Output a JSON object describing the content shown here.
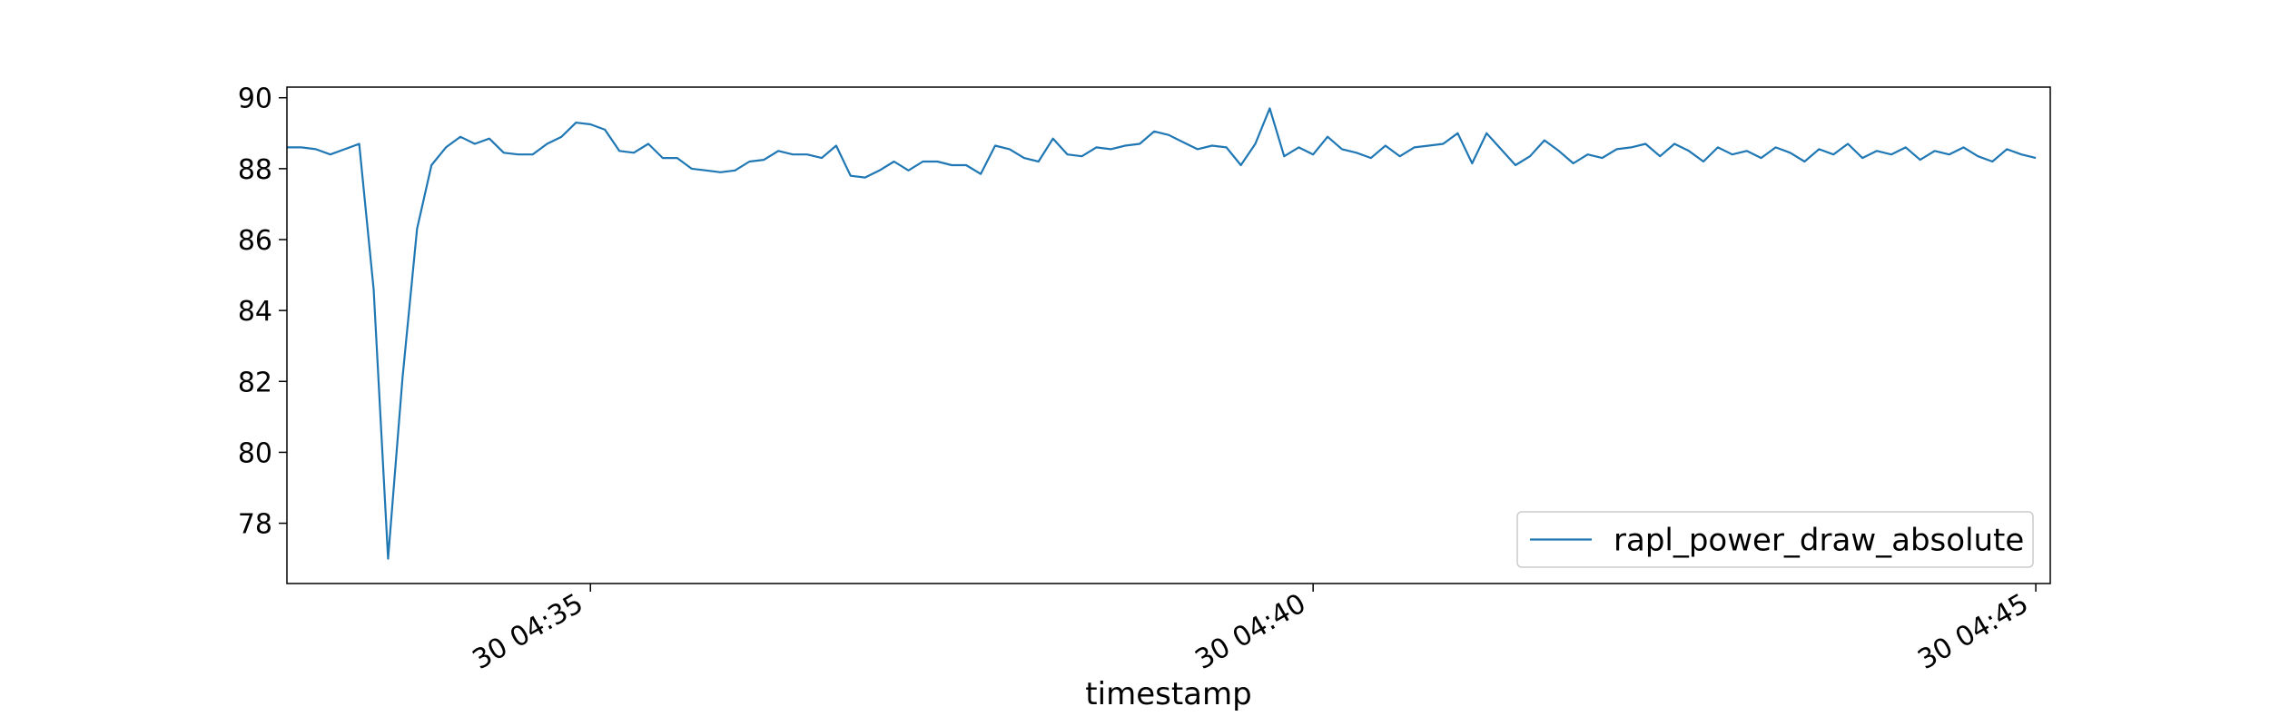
{
  "chart_data": {
    "type": "line",
    "title": "",
    "xlabel": "timestamp",
    "ylabel": "",
    "xlim": [
      0,
      122
    ],
    "ylim": [
      76.3,
      90.3
    ],
    "yticks": [
      78,
      80,
      82,
      84,
      86,
      88,
      90
    ],
    "xticks": [
      {
        "x": 21,
        "label": "30 04:35"
      },
      {
        "x": 71,
        "label": "30 04:40"
      },
      {
        "x": 121,
        "label": "30 04:45"
      }
    ],
    "grid": false,
    "legend_position": "lower-right",
    "colors": {
      "line": "#1f77b4",
      "axes": "#000000",
      "legend_border": "#cccccc"
    },
    "series": [
      {
        "name": "rapl_power_draw_absolute",
        "values": [
          88.6,
          88.6,
          88.55,
          88.4,
          88.55,
          88.7,
          84.6,
          77.0,
          82.1,
          86.3,
          88.1,
          88.6,
          88.9,
          88.7,
          88.85,
          88.45,
          88.4,
          88.4,
          88.7,
          88.9,
          89.3,
          89.25,
          89.1,
          88.5,
          88.45,
          88.7,
          88.3,
          88.3,
          88.0,
          87.95,
          87.9,
          87.95,
          88.2,
          88.25,
          88.5,
          88.4,
          88.4,
          88.3,
          88.65,
          87.8,
          87.75,
          87.95,
          88.2,
          87.95,
          88.2,
          88.2,
          88.1,
          88.1,
          87.85,
          88.65,
          88.55,
          88.3,
          88.2,
          88.85,
          88.4,
          88.35,
          88.6,
          88.55,
          88.65,
          88.7,
          89.05,
          88.95,
          88.75,
          88.55,
          88.65,
          88.6,
          88.1,
          88.7,
          89.7,
          88.35,
          88.6,
          88.4,
          88.9,
          88.55,
          88.45,
          88.3,
          88.65,
          88.35,
          88.6,
          88.65,
          88.7,
          89.0,
          88.15,
          89.0,
          88.55,
          88.1,
          88.35,
          88.8,
          88.5,
          88.15,
          88.4,
          88.3,
          88.55,
          88.6,
          88.7,
          88.35,
          88.7,
          88.5,
          88.2,
          88.6,
          88.4,
          88.5,
          88.3,
          88.6,
          88.45,
          88.2,
          88.55,
          88.4,
          88.7,
          88.3,
          88.5,
          88.4,
          88.6,
          88.25,
          88.5,
          88.4,
          88.6,
          88.35,
          88.2,
          88.55,
          88.4,
          88.3
        ]
      }
    ]
  }
}
